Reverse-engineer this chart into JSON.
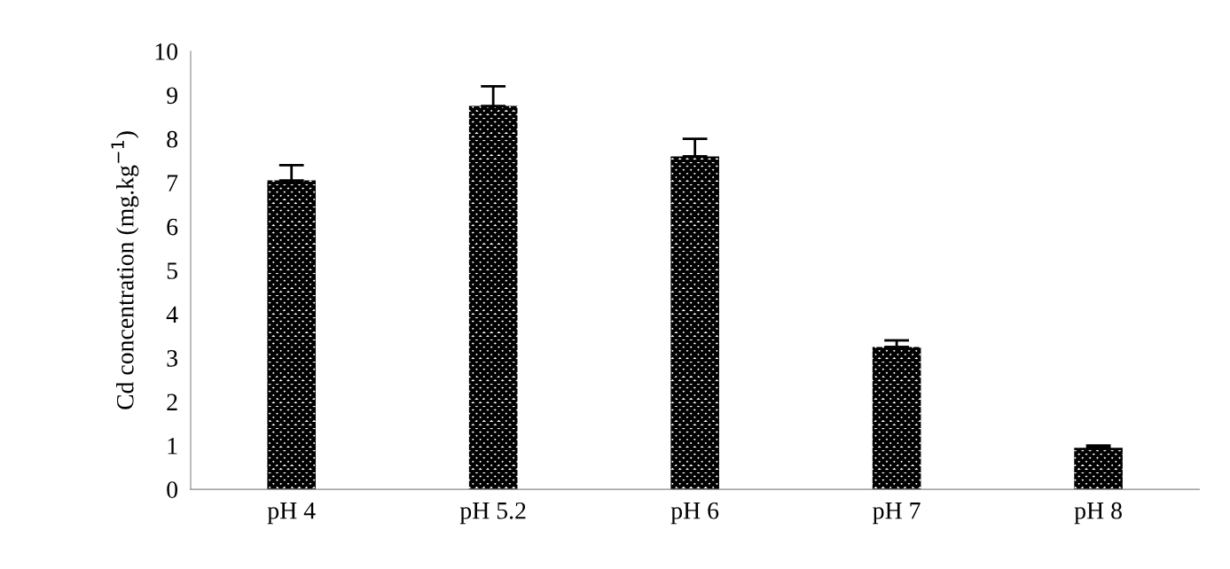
{
  "chart_data": {
    "type": "bar",
    "ylabel": "Cd concentration (mg.kg$^{−1}$)",
    "categories": [
      "pH 4",
      "pH 5.2",
      "pH 6",
      "pH 7",
      "pH 8"
    ],
    "values": [
      7.05,
      8.75,
      7.6,
      3.25,
      0.95
    ],
    "errors": [
      0.35,
      0.45,
      0.4,
      0.15,
      0.05
    ],
    "color": "#000000",
    "ylim": [
      0,
      10
    ],
    "yticks": [
      0,
      1,
      2,
      3,
      4,
      5,
      6,
      7,
      8,
      9,
      10
    ],
    "grid": false
  }
}
